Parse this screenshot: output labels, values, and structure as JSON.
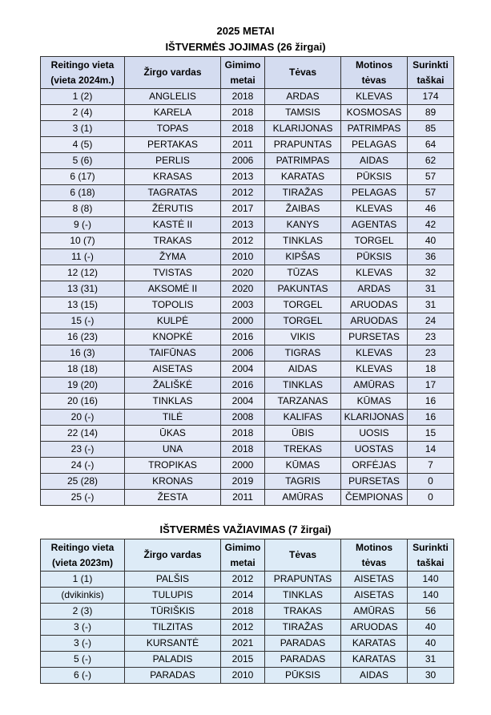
{
  "header": {
    "title": "2025 METAI"
  },
  "sections": [
    {
      "title": "IŠTVERMĖS JOJIMAS (26 žirgai)",
      "table": {
        "columns": [
          [
            "Reitingo vieta",
            "(vieta 2024m.)"
          ],
          [
            "Žirgo vardas"
          ],
          [
            "Gimimo",
            "metai"
          ],
          [
            "Tėvas"
          ],
          [
            "Motinos",
            "tėvas"
          ],
          [
            "Surinkti",
            "taškai"
          ]
        ],
        "rows": [
          [
            "1 (2)",
            "ANGLELIS",
            2018,
            "ARDAS",
            "KLEVAS",
            174
          ],
          [
            "2 (4)",
            "KARELA",
            2018,
            "TAMSIS",
            "KOSMOSAS",
            89
          ],
          [
            "3 (1)",
            "TOPAS",
            2018,
            "KLARIJONAS",
            "PATRIMPAS",
            85
          ],
          [
            "4 (5)",
            "PERTAKAS",
            2011,
            "PRAPUNTAS",
            "PELAGAS",
            64
          ],
          [
            "5 (6)",
            "PERLIS",
            2006,
            "PATRIMPAS",
            "AIDAS",
            62
          ],
          [
            "6 (17)",
            "KRASAS",
            2013,
            "KARATAS",
            "PŪKSIS",
            57
          ],
          [
            "6 (18)",
            "TAGRATAS",
            2012,
            "TIRAŽAS",
            "PELAGAS",
            57
          ],
          [
            "8 (8)",
            "ŽĖRUTIS",
            2017,
            "ŽAIBAS",
            "KLEVAS",
            46
          ],
          [
            "9 (-)",
            "KASTĖ II",
            2013,
            "KANYS",
            "AGENTAS",
            42
          ],
          [
            "10 (7)",
            "TRAKAS",
            2012,
            "TINKLAS",
            "TORGEL",
            40
          ],
          [
            "11 (-)",
            "ŽYMA",
            2010,
            "KIPŠAS",
            "PŪKSIS",
            36
          ],
          [
            "12 (12)",
            "TVISTAS",
            2020,
            "TŪZAS",
            "KLEVAS",
            32
          ],
          [
            "13 (31)",
            "AKSOMĖ II",
            2020,
            "PAKUNTAS",
            "ARDAS",
            31
          ],
          [
            "13 (15)",
            "TOPOLIS",
            2003,
            "TORGEL",
            "ARUODAS",
            31
          ],
          [
            "15 (-)",
            "KULPĖ",
            2000,
            "TORGEL",
            "ARUODAS",
            24
          ],
          [
            "16 (23)",
            "KNOPKĖ",
            2016,
            "VIKIS",
            "PURSETAS",
            23
          ],
          [
            "16 (3)",
            "TAIFŪNAS",
            2006,
            "TIGRAS",
            "KLEVAS",
            23
          ],
          [
            "18 (18)",
            "AISETAS",
            2004,
            "AIDAS",
            "KLEVAS",
            18
          ],
          [
            "19 (20)",
            "ŽALIŠKĖ",
            2016,
            "TINKLAS",
            "AMŪRAS",
            17
          ],
          [
            "20 (16)",
            "TINKLAS",
            2004,
            "TARZANAS",
            "KŪMAS",
            16
          ],
          [
            "20 (-)",
            "TILĖ",
            2008,
            "KALIFAS",
            "KLARIJONAS",
            16
          ],
          [
            "22 (14)",
            "ŪKAS",
            2018,
            "ŪBIS",
            "UOSIS",
            15
          ],
          [
            "23 (-)",
            "UNA",
            2018,
            "TREKAS",
            "UOSTAS",
            14
          ],
          [
            "24 (-)",
            "TROPIKAS",
            2000,
            "KŪMAS",
            "ORFĖJAS",
            7
          ],
          [
            "25 (28)",
            "KRONAS",
            2019,
            "TAGRIS",
            "PURSETAS",
            0
          ],
          [
            "25 (-)",
            "ŽESTA",
            2011,
            "AMŪRAS",
            "ČEMPIONAS",
            0
          ]
        ]
      }
    },
    {
      "title": "IŠTVERMĖS VAŽIAVIMAS (7 žirgai)",
      "table": {
        "columns": [
          [
            "Reitingo vieta",
            "(vieta 2023m)"
          ],
          [
            "Žirgo vardas"
          ],
          [
            "Gimimo",
            "metai"
          ],
          [
            "Tėvas"
          ],
          [
            "Motinos",
            "tėvas"
          ],
          [
            "Surinkti",
            "taškai"
          ]
        ],
        "rows": [
          [
            "1 (1)",
            "PALŠIS",
            2012,
            "PRAPUNTAS",
            "AISETAS",
            140
          ],
          [
            "(dvikinkis)",
            "TULUPIS",
            2014,
            "TINKLAS",
            "AISETAS",
            140
          ],
          [
            "2 (3)",
            "TŪRIŠKIS",
            2018,
            "TRAKAS",
            "AMŪRAS",
            56
          ],
          [
            "3 (-)",
            "TILZITAS",
            2012,
            "TIRAŽAS",
            "ARUODAS",
            40
          ],
          [
            "3 (-)",
            "KURSANTĖ",
            2021,
            "PARADAS",
            "KARATAS",
            40
          ],
          [
            "5  (-)",
            "PALADIS",
            2015,
            "PARADAS",
            "KARATAS",
            31
          ],
          [
            "6  (-)",
            "PARADAS",
            2010,
            "PŪKSIS",
            "AIDAS",
            30
          ]
        ]
      }
    }
  ]
}
